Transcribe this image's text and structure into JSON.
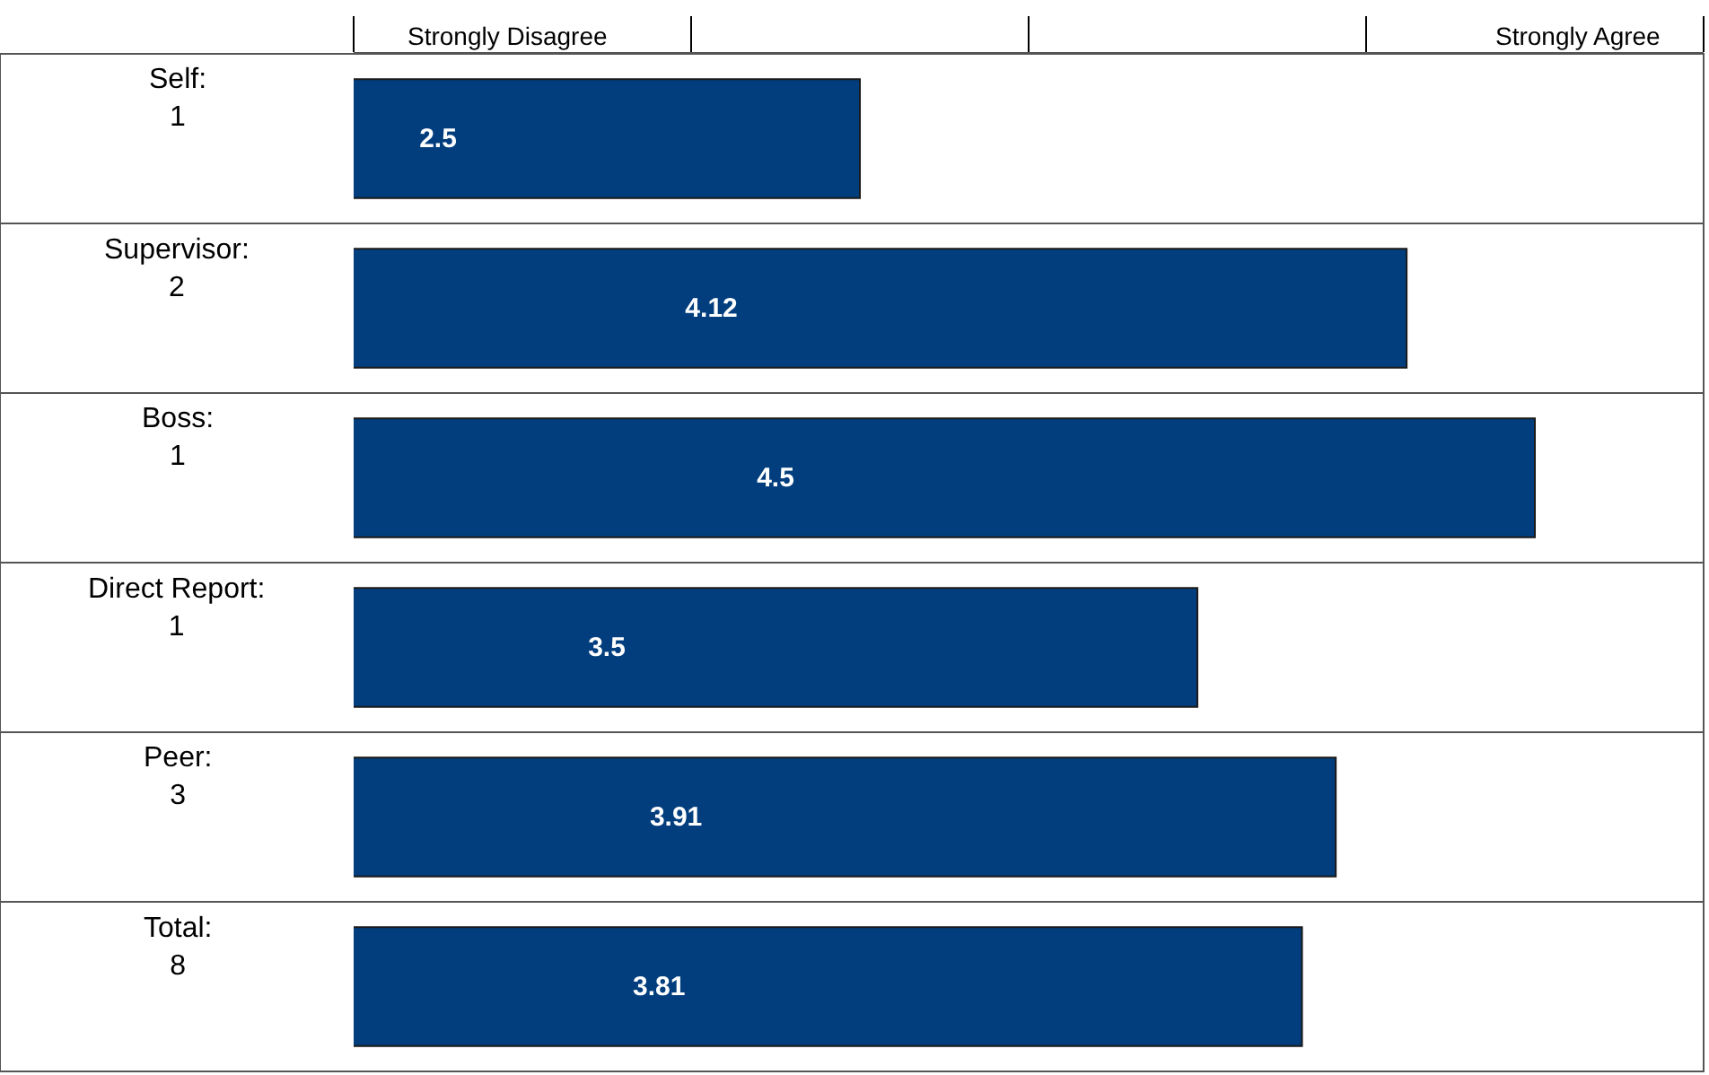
{
  "chart_data": {
    "type": "bar",
    "orientation": "horizontal",
    "categories": [
      "Self:\n1",
      "Supervisor:\n2",
      "Boss:\n1",
      "Direct Report:\n1",
      "Peer:\n3",
      "Total:\n8"
    ],
    "values": [
      2.5,
      4.12,
      4.5,
      3.5,
      3.91,
      3.81
    ],
    "color": "#023e7d",
    "xlim": [
      1,
      5
    ],
    "annotations": [
      "Strongly Disagree",
      "Strongly Agree"
    ],
    "grid": true,
    "data_labels": true
  }
}
